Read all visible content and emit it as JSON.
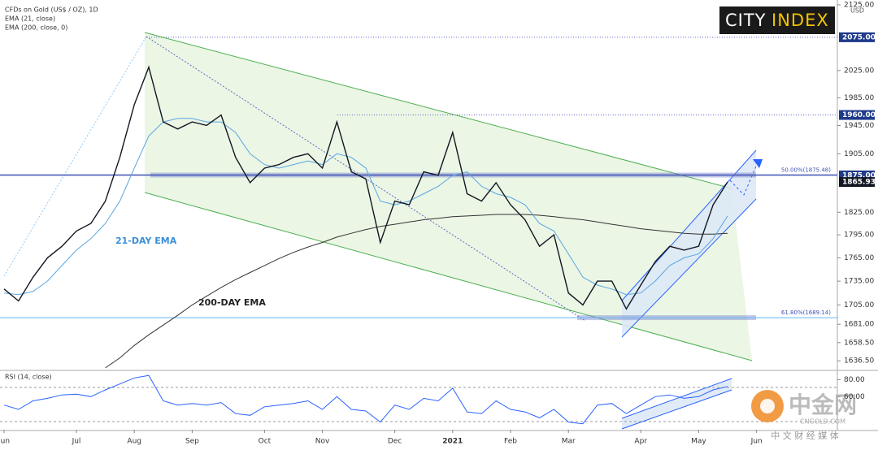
{
  "chart_data": {
    "type": "line",
    "title": "CFDs on Gold (US$ / OZ), 1D",
    "currency": "USD",
    "log": true,
    "categories": [
      "Jun",
      null,
      null,
      null,
      null,
      "Jul",
      null,
      null,
      null,
      "Aug",
      null,
      null,
      null,
      "Sep",
      null,
      null,
      null,
      null,
      "Oct",
      null,
      null,
      null,
      "Nov",
      null,
      null,
      null,
      null,
      "Dec",
      null,
      null,
      null,
      "2021",
      null,
      null,
      null,
      "Feb",
      null,
      null,
      null,
      "Mar",
      null,
      null,
      null,
      null,
      "Apr",
      null,
      null,
      null,
      "May",
      null,
      null,
      null,
      "Jun"
    ],
    "values": [
      1725,
      1710,
      1740,
      1765,
      1780,
      1800,
      1810,
      1840,
      1900,
      1975,
      2030,
      1950,
      1940,
      1950,
      1945,
      1960,
      1900,
      1865,
      1885,
      1890,
      1900,
      1905,
      1885,
      1950,
      1880,
      1870,
      1785,
      1840,
      1835,
      1880,
      1875,
      1935,
      1850,
      1840,
      1865,
      1835,
      1815,
      1780,
      1795,
      1720,
      1705,
      1735,
      1735,
      1700,
      1730,
      1760,
      1780,
      1775,
      1780,
      1835,
      1866,
      null,
      null
    ],
    "color": "#131722",
    "series": [
      {
        "name": "EMA (21, close)",
        "color": "#5aa6e0",
        "values": [
          1720,
          1718,
          1722,
          1735,
          1755,
          1775,
          1790,
          1810,
          1840,
          1885,
          1930,
          1950,
          1955,
          1955,
          1950,
          1950,
          1935,
          1905,
          1890,
          1885,
          1890,
          1895,
          1890,
          1905,
          1900,
          1885,
          1840,
          1835,
          1840,
          1850,
          1860,
          1875,
          1880,
          1860,
          1850,
          1845,
          1835,
          1810,
          1800,
          1770,
          1740,
          1730,
          1725,
          1718,
          1720,
          1735,
          1755,
          1765,
          1770,
          1790,
          1820,
          null,
          null
        ]
      },
      {
        "name": "EMA (200, close, 0)",
        "color": "#333333",
        "values": [
          null,
          null,
          null,
          null,
          null,
          null,
          null,
          1628,
          1640,
          1655,
          1668,
          1680,
          1692,
          1705,
          1716,
          1727,
          1737,
          1746,
          1755,
          1764,
          1772,
          1779,
          1785,
          1792,
          1797,
          1802,
          1806,
          1809,
          1812,
          1815,
          1817,
          1819,
          1820,
          1821,
          1822,
          1822,
          1822,
          1821,
          1819,
          1817,
          1815,
          1812,
          1809,
          1806,
          1803,
          1801,
          1799,
          1797,
          1796,
          1796,
          1797,
          null,
          null
        ]
      }
    ],
    "ylim": [
      1626,
      2130
    ],
    "yticks": [
      {
        "value": 2125,
        "label": "2125.00"
      },
      {
        "value": 2025,
        "label": "2025.00"
      },
      {
        "value": 1985,
        "label": "1985.00"
      },
      {
        "value": 1945,
        "label": "1945.00"
      },
      {
        "value": 1905,
        "label": "1905.00"
      },
      {
        "value": 1825,
        "label": "1825.00"
      },
      {
        "value": 1795,
        "label": "1795.00"
      },
      {
        "value": 1765,
        "label": "1765.00"
      },
      {
        "value": 1735,
        "label": "1735.00"
      },
      {
        "value": 1705,
        "label": "1705.00"
      },
      {
        "value": 1681,
        "label": "1681.00"
      },
      {
        "value": 1658.5,
        "label": "1658.50"
      },
      {
        "value": 1636.5,
        "label": "1636.50"
      }
    ],
    "price_tags": [
      {
        "value": 2075,
        "label": "2075.00"
      },
      {
        "value": 1960,
        "label": "1960.00"
      },
      {
        "value": 1875,
        "label": "1875.00"
      },
      {
        "value": 1865.93,
        "label": "1865.93"
      }
    ],
    "fib_levels": [
      {
        "value": 1875.48,
        "label": "50.00%(1875.48)"
      },
      {
        "value": 1689.14,
        "label": "61.80%(1689.14)"
      }
    ],
    "annotations": [
      "21-DAY EMA",
      "200-DAY EMA"
    ],
    "logo": [
      "CITY",
      "INDEX"
    ],
    "rsi": {
      "name": "RSI (14, close)",
      "color": "#2962ff",
      "values": [
        50,
        45,
        55,
        58,
        62,
        63,
        60,
        68,
        75,
        82,
        85,
        55,
        50,
        52,
        50,
        53,
        40,
        38,
        48,
        50,
        52,
        55,
        45,
        60,
        45,
        43,
        30,
        50,
        45,
        58,
        55,
        70,
        42,
        40,
        55,
        45,
        42,
        35,
        45,
        30,
        28,
        50,
        52,
        40,
        50,
        60,
        62,
        58,
        60,
        68,
        72,
        null,
        null
      ],
      "ylim": [
        21,
        90
      ],
      "yticks": [
        {
          "value": 80,
          "label": "80.00"
        },
        {
          "value": 60,
          "label": "60.00"
        }
      ]
    },
    "watermark": [
      "中金网",
      "CNGOLD.COM",
      "中 文 财 经 媒 体"
    ]
  }
}
